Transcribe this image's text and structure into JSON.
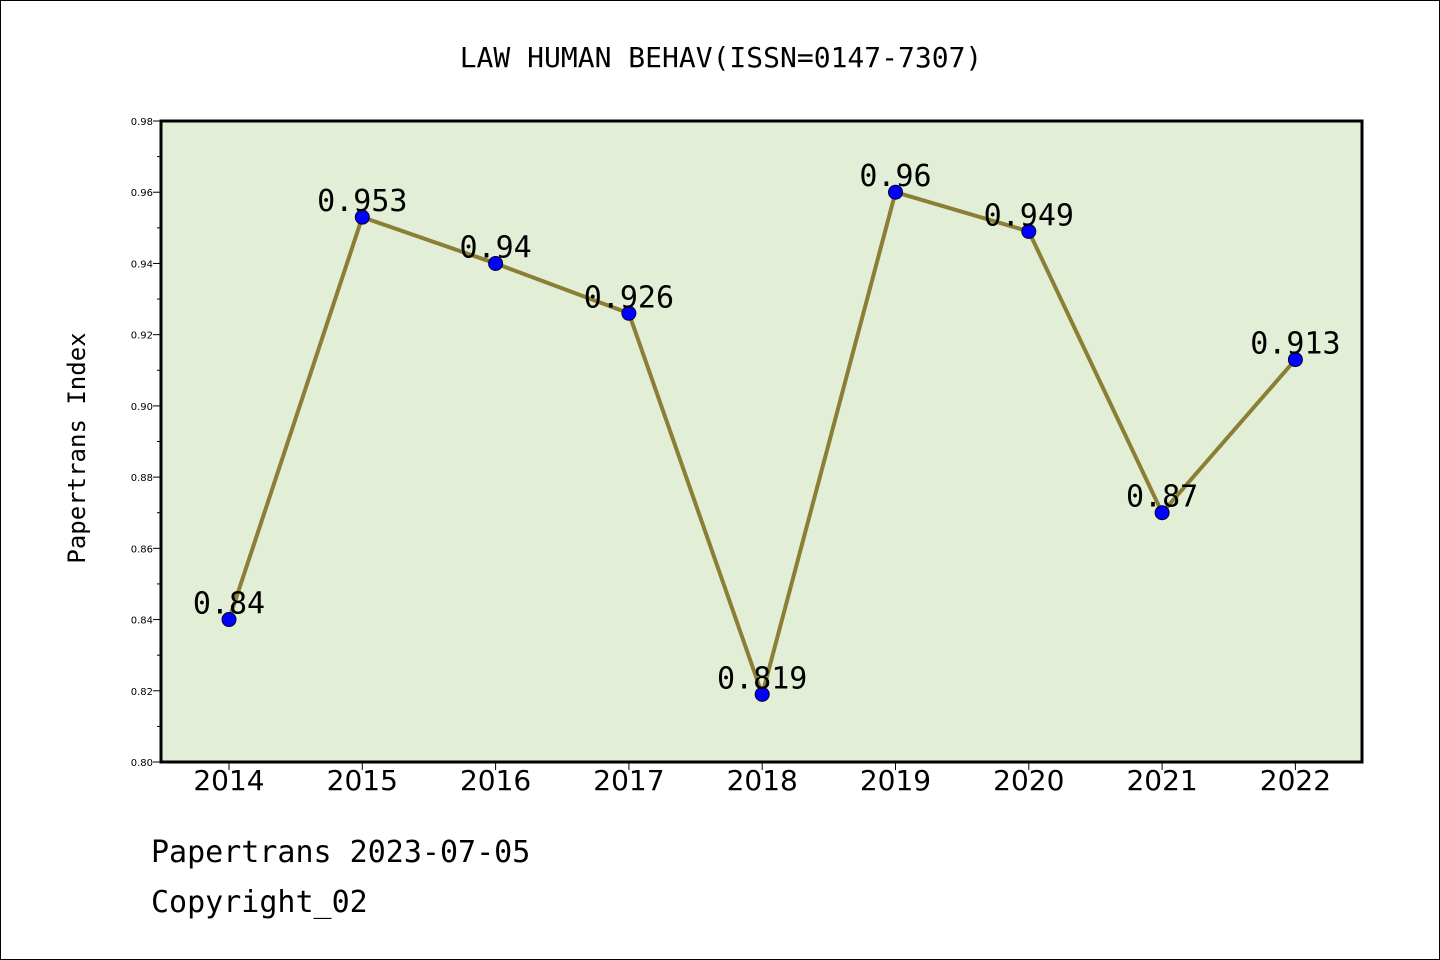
{
  "chart_data": {
    "type": "line",
    "title": "LAW HUMAN BEHAV(ISSN=0147-7307)",
    "xlabel": "",
    "ylabel": "Papertrans Index",
    "categories": [
      "2014",
      "2015",
      "2016",
      "2017",
      "2018",
      "2019",
      "2020",
      "2021",
      "2022"
    ],
    "series": [
      {
        "values": [
          0.84,
          0.953,
          0.94,
          0.926,
          0.819,
          0.96,
          0.949,
          0.87,
          0.913
        ],
        "labels": [
          "0.84",
          "0.953",
          "0.94",
          "0.926",
          "0.819",
          "0.96",
          "0.949",
          "0.87",
          "0.913"
        ]
      }
    ],
    "ylim": [
      0.8,
      0.98
    ],
    "yticks": [
      0.8,
      0.82,
      0.84,
      0.86,
      0.88,
      0.9,
      0.92,
      0.94,
      0.96,
      0.98
    ],
    "ytick_labels": [
      "0.80",
      "0.82",
      "0.84",
      "0.86",
      "0.88",
      "0.90",
      "0.92",
      "0.94",
      "0.96",
      "0.98"
    ],
    "grid": false,
    "legend": "none",
    "colors": {
      "plot_background": "#e2efd6",
      "line": "#8b7f35",
      "marker": "#0000ff"
    }
  },
  "footer": {
    "date_line": "Papertrans 2023-07-05",
    "copyright": "Copyright_02"
  }
}
